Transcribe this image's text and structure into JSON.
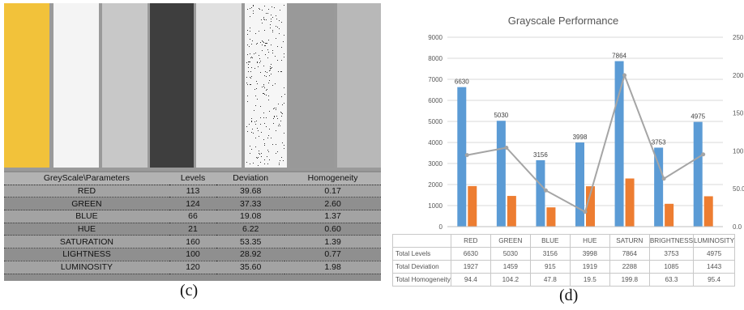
{
  "panel_c": {
    "caption": "(c)",
    "strips": [
      {
        "color": "#f2c23a"
      },
      {
        "color": "#f4f4f4"
      },
      {
        "color": "#c8c8c8"
      },
      {
        "color": "#3e3e3e"
      },
      {
        "color": "#e0e0e0"
      },
      {
        "color": "#f6f6f6"
      },
      {
        "color": "#999999"
      },
      {
        "color": "#b8b8b8"
      }
    ],
    "table": {
      "headers": [
        "GreyScale\\Parameters",
        "Levels",
        "Deviation",
        "Homogeneity"
      ],
      "rows": [
        [
          "RED",
          "113",
          "39.68",
          "0.17"
        ],
        [
          "GREEN",
          "124",
          "37.33",
          "2.60"
        ],
        [
          "BLUE",
          "66",
          "19.08",
          "1.37"
        ],
        [
          "HUE",
          "21",
          "6.22",
          "0.60"
        ],
        [
          "SATURATION",
          "160",
          "53.35",
          "1.39"
        ],
        [
          "LIGHTNESS",
          "100",
          "28.92",
          "0.77"
        ],
        [
          "LUMINOSITY",
          "120",
          "35.60",
          "1.98"
        ]
      ]
    }
  },
  "panel_d": {
    "caption": "(d)"
  },
  "chart_data": {
    "type": "bar",
    "title": "Grayscale Performance",
    "categories": [
      "RED",
      "GREEN",
      "BLUE",
      "HUE",
      "SATURN",
      "BRIGHTNESS",
      "LUMINOSITY"
    ],
    "series": [
      {
        "name": "Total Levels",
        "kind": "bar",
        "axis": "left",
        "color": "#5b9bd5",
        "values": [
          6630,
          5030,
          3156,
          3998,
          7864,
          3753,
          4975
        ]
      },
      {
        "name": "Total Deviation",
        "kind": "bar",
        "axis": "left",
        "color": "#ed7d31",
        "values": [
          1927,
          1459,
          915,
          1919,
          2288,
          1085,
          1443
        ]
      },
      {
        "name": "Total Homogeneity",
        "kind": "line",
        "axis": "right",
        "color": "#a5a5a5",
        "values": [
          94.4,
          104.2,
          47.8,
          19.5,
          199.8,
          63.3,
          95.4
        ]
      }
    ],
    "data_labels": [
      "6630",
      "5030",
      "3156",
      "3998",
      "7864",
      "3753",
      "4975"
    ],
    "y_left": {
      "min": 0,
      "max": 9000,
      "step": 1000,
      "ticks": [
        "0",
        "1000",
        "2000",
        "3000",
        "4000",
        "5000",
        "6000",
        "7000",
        "8000",
        "9000"
      ]
    },
    "y_right": {
      "min": 0,
      "max": 250,
      "ticks": [
        "0.0",
        "50.0",
        "100.",
        "150.",
        "200.",
        "250."
      ]
    },
    "grid": true,
    "table_rows": [
      {
        "label": "Total Levels",
        "values": [
          "6630",
          "5030",
          "3156",
          "3998",
          "7864",
          "3753",
          "4975"
        ]
      },
      {
        "label": "Total Deviation",
        "values": [
          "1927",
          "1459",
          "915",
          "1919",
          "2288",
          "1085",
          "1443"
        ]
      },
      {
        "label": "Total Homogeneity",
        "values": [
          "94.4",
          "104.2",
          "47.8",
          "19.5",
          "199.8",
          "63.3",
          "95.4"
        ]
      }
    ]
  }
}
